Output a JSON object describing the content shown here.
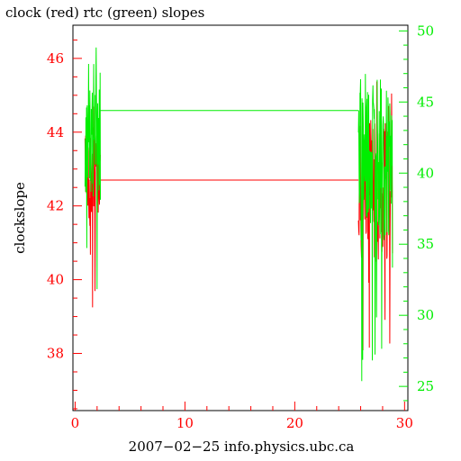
{
  "chart_data": {
    "type": "line",
    "title": "clock (red) rtc (green) slopes",
    "xlabel": "2007−02−25 info.physics.ubc.ca",
    "ylabel": "clockslope",
    "xlim": [
      -0.2,
      30.3
    ],
    "ylim_left": [
      36.45,
      46.9
    ],
    "ylim_right": [
      23.3,
      50.4
    ],
    "x_ticks": [
      0,
      10,
      20,
      30
    ],
    "y_ticks_left": [
      38,
      40,
      42,
      44,
      46
    ],
    "y_ticks_right": [
      25,
      30,
      35,
      40,
      45,
      50
    ],
    "colors": {
      "clock": "#ff0000",
      "rtc": "#00ee00",
      "axes": "#000000"
    },
    "series": [
      {
        "name": "clock",
        "axis": "left",
        "segments": [
          {
            "type": "noisy",
            "x_range": [
              0.9,
              2.3
            ],
            "center": 42.7,
            "min": 39.0,
            "max": 44.8,
            "seed": 3
          },
          {
            "type": "line",
            "x": [
              2.3,
              25.8
            ],
            "y": [
              42.7,
              42.7
            ]
          },
          {
            "type": "noisy",
            "x_range": [
              25.8,
              28.9
            ],
            "center": 42.4,
            "min": 37.8,
            "max": 46.5,
            "seed": 11
          }
        ]
      },
      {
        "name": "rtc",
        "axis": "right",
        "segments": [
          {
            "type": "noisy",
            "x_range": [
              0.9,
              2.3
            ],
            "center": 43.0,
            "min": 26.5,
            "max": 49.3,
            "seed": 7
          },
          {
            "type": "line",
            "x": [
              2.3,
              25.8
            ],
            "y": [
              44.4,
              44.4
            ]
          },
          {
            "type": "noisy",
            "x_range": [
              25.8,
              28.9
            ],
            "center": 41.0,
            "min": 24.0,
            "max": 49.4,
            "seed": 19
          }
        ]
      }
    ]
  }
}
